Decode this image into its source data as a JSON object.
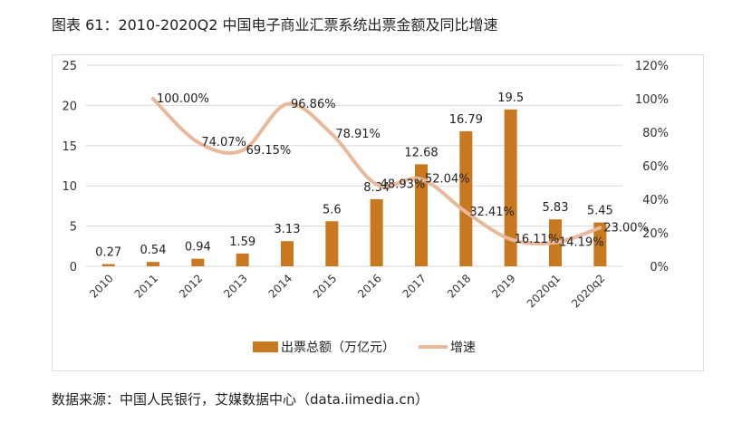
{
  "title": "图表 61：2010-2020Q2 中国电子商业汇票系统出票金额及同比增速",
  "source": "数据来源：中国人民银行，艾媒数据中心（data.iimedia.cn）",
  "chart_data": {
    "type": "bar+line",
    "categories": [
      "2010",
      "2011",
      "2012",
      "2013",
      "2014",
      "2015",
      "2016",
      "2017",
      "2018",
      "2019",
      "2020q1",
      "2020q2"
    ],
    "series": [
      {
        "name": "出票总额（万亿元）",
        "type": "bar",
        "axis": "left",
        "color": "#C8781E",
        "values": [
          0.27,
          0.54,
          0.94,
          1.59,
          3.13,
          5.6,
          8.34,
          12.68,
          16.79,
          19.5,
          5.83,
          5.45
        ],
        "labels": [
          "0.27",
          "0.54",
          "0.94",
          "1.59",
          "3.13",
          "5.6",
          "8.34",
          "12.68",
          "16.79",
          "19.5",
          "5.83",
          "5.45"
        ]
      },
      {
        "name": "增速",
        "type": "line",
        "axis": "right",
        "color": "#E8B99A",
        "values": [
          null,
          100.0,
          74.07,
          69.15,
          96.86,
          78.91,
          48.93,
          52.04,
          32.41,
          16.11,
          14.19,
          23.0
        ],
        "labels": [
          null,
          "100.00%",
          "74.07%",
          "69.15%",
          "96.86%",
          "78.91%",
          "48.93%",
          "52.04%",
          "32.41%",
          "16.11%",
          "14.19%",
          "23.00%"
        ]
      }
    ],
    "y_left": {
      "range": [
        0,
        25
      ],
      "ticks": [
        "0",
        "5",
        "10",
        "15",
        "20",
        "25"
      ]
    },
    "y_right": {
      "range": [
        0,
        120
      ],
      "ticks": [
        "0%",
        "20%",
        "40%",
        "60%",
        "80%",
        "100%",
        "120%"
      ]
    },
    "grid": true,
    "legend_position": "bottom"
  }
}
